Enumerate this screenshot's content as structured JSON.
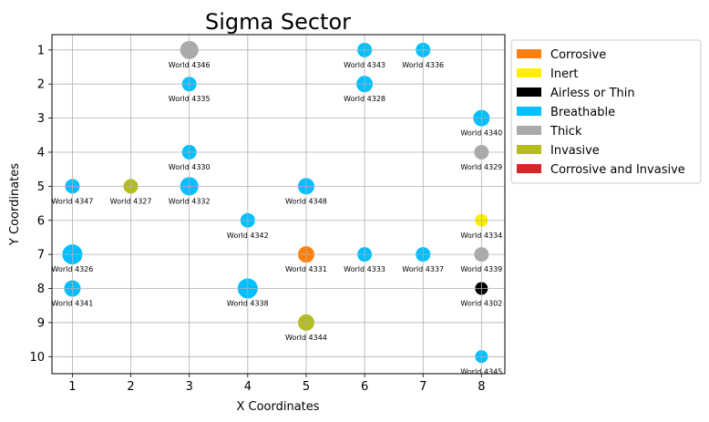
{
  "chart_data": {
    "type": "scatter",
    "title": "Sigma Sector",
    "xlabel": "X Coordinates",
    "ylabel": "Y Coordinates",
    "xlim": [
      0.65,
      8.4
    ],
    "ylim": [
      0.55,
      10.5
    ],
    "y_inverted": true,
    "xticks": [
      1,
      2,
      3,
      4,
      5,
      6,
      7,
      8
    ],
    "yticks": [
      1,
      2,
      3,
      4,
      5,
      6,
      7,
      8,
      9,
      10
    ],
    "grid": true,
    "legend_position": "outside-right-top",
    "categories": [
      {
        "name": "Corrosive",
        "color": "#ff7f0e"
      },
      {
        "name": "Inert",
        "color": "#ffee00"
      },
      {
        "name": "Airless or Thin",
        "color": "#000000"
      },
      {
        "name": "Breathable",
        "color": "#00bfff"
      },
      {
        "name": "Thick",
        "color": "#aaaaaa"
      },
      {
        "name": "Invasive",
        "color": "#b5bd1e"
      },
      {
        "name": "Corrosive and Invasive",
        "color": "#d62728"
      }
    ],
    "points": [
      {
        "name": "World 4346",
        "x": 3,
        "y": 1,
        "atmosphere": "Thick",
        "size": 3
      },
      {
        "name": "World 4343",
        "x": 6,
        "y": 1,
        "atmosphere": "Breathable",
        "size": 2
      },
      {
        "name": "World 4336",
        "x": 7,
        "y": 1,
        "atmosphere": "Breathable",
        "size": 2
      },
      {
        "name": "World 4335",
        "x": 3,
        "y": 2,
        "atmosphere": "Breathable",
        "size": 2
      },
      {
        "name": "World 4328",
        "x": 6,
        "y": 2,
        "atmosphere": "Breathable",
        "size": 2.5
      },
      {
        "name": "World 4340",
        "x": 8,
        "y": 3,
        "atmosphere": "Breathable",
        "size": 2.5
      },
      {
        "name": "World 4330",
        "x": 3,
        "y": 4,
        "atmosphere": "Breathable",
        "size": 2
      },
      {
        "name": "World 4329",
        "x": 8,
        "y": 4,
        "atmosphere": "Thick",
        "size": 2
      },
      {
        "name": "World 4347",
        "x": 1,
        "y": 5,
        "atmosphere": "Breathable",
        "size": 2
      },
      {
        "name": "World 4327",
        "x": 2,
        "y": 5,
        "atmosphere": "Invasive",
        "size": 2
      },
      {
        "name": "World 4332",
        "x": 3,
        "y": 5,
        "atmosphere": "Breathable",
        "size": 3
      },
      {
        "name": "World 4348",
        "x": 5,
        "y": 5,
        "atmosphere": "Breathable",
        "size": 2.5
      },
      {
        "name": "World 4342",
        "x": 4,
        "y": 6,
        "atmosphere": "Breathable",
        "size": 2
      },
      {
        "name": "World 4334",
        "x": 8,
        "y": 6,
        "atmosphere": "Inert",
        "size": 1.5
      },
      {
        "name": "World 4326",
        "x": 1,
        "y": 7,
        "atmosphere": "Breathable",
        "size": 3.5
      },
      {
        "name": "World 4331",
        "x": 5,
        "y": 7,
        "atmosphere": "Corrosive",
        "size": 2.5
      },
      {
        "name": "World 4333",
        "x": 6,
        "y": 7,
        "atmosphere": "Breathable",
        "size": 2
      },
      {
        "name": "World 4337",
        "x": 7,
        "y": 7,
        "atmosphere": "Breathable",
        "size": 2
      },
      {
        "name": "World 4339",
        "x": 8,
        "y": 7,
        "atmosphere": "Thick",
        "size": 2
      },
      {
        "name": "World 4341",
        "x": 1,
        "y": 8,
        "atmosphere": "Breathable",
        "size": 2.5
      },
      {
        "name": "World 4338",
        "x": 4,
        "y": 8,
        "atmosphere": "Breathable",
        "size": 3.5
      },
      {
        "name": "World 4302",
        "x": 8,
        "y": 8,
        "atmosphere": "Airless or Thin",
        "size": 1.5
      },
      {
        "name": "World 4344",
        "x": 5,
        "y": 9,
        "atmosphere": "Invasive",
        "size": 2.5
      },
      {
        "name": "World 4345",
        "x": 8,
        "y": 10,
        "atmosphere": "Breathable",
        "size": 1.5
      }
    ]
  }
}
